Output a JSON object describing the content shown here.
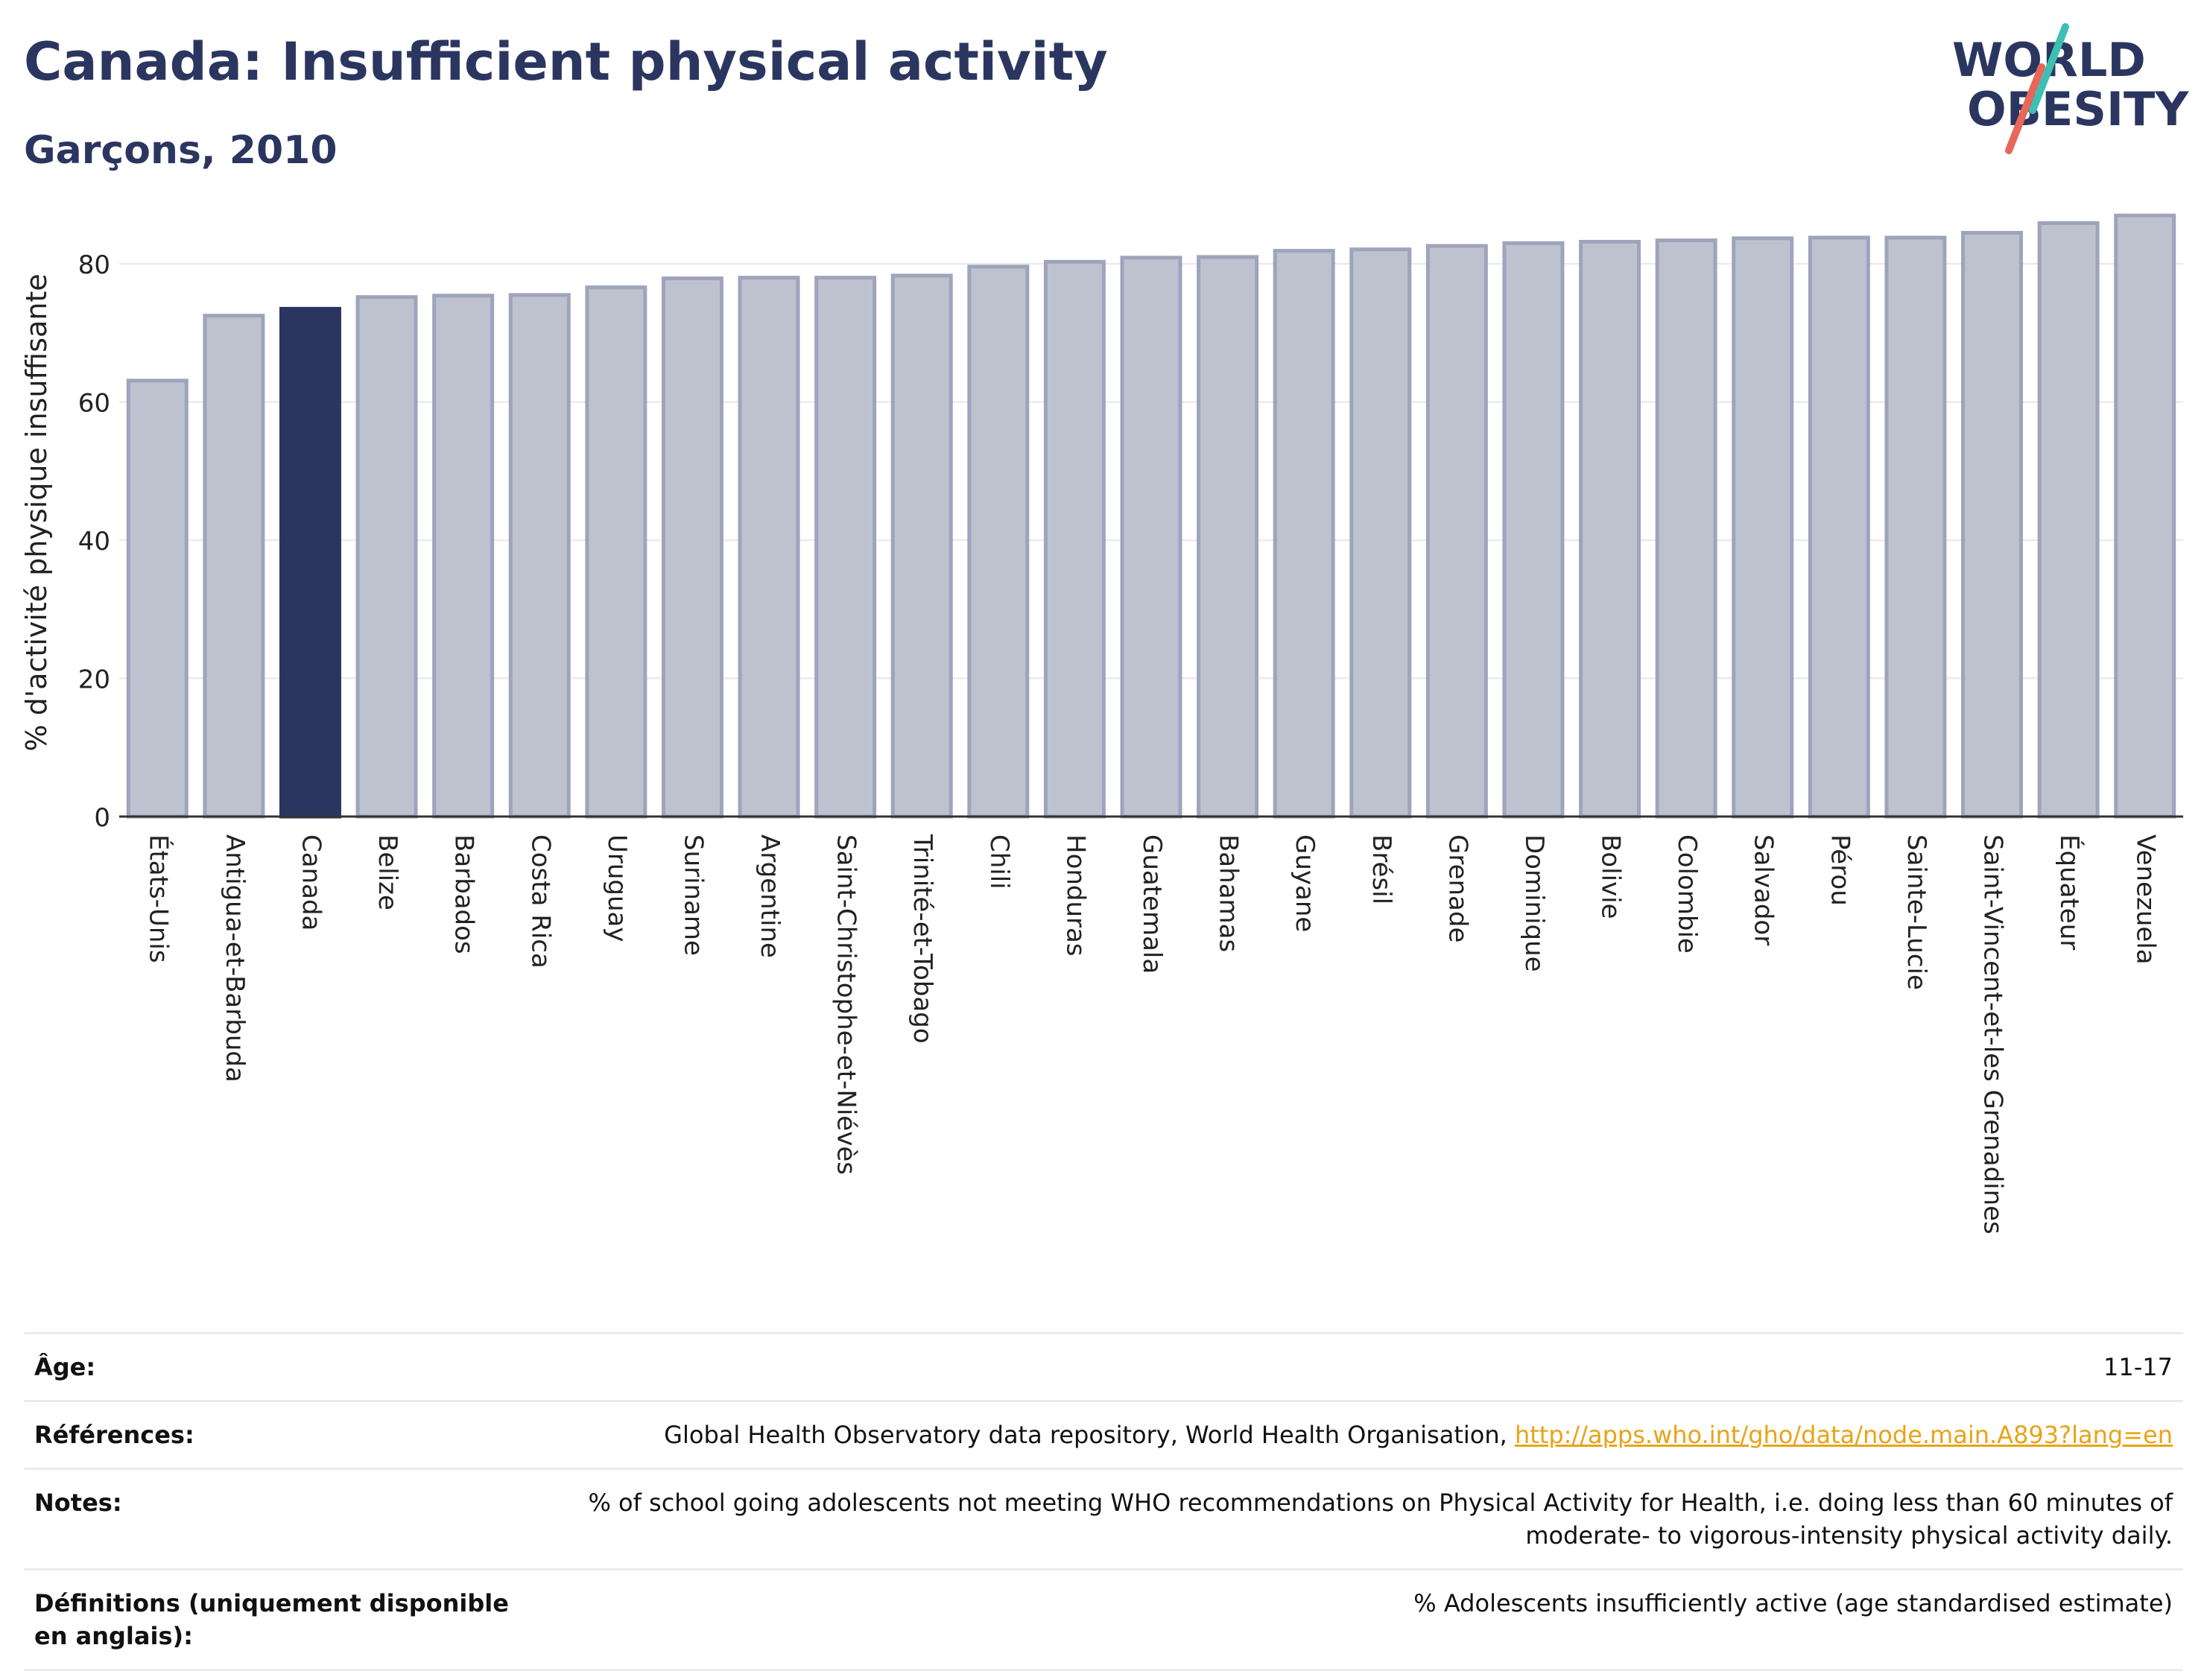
{
  "header": {
    "title": "Canada: Insufficient physical activity",
    "subtitle": "Garçons, 2010"
  },
  "logo": {
    "line1": "WORLD",
    "line2": "OBESITY"
  },
  "colors": {
    "highlight_bar": "#2b3660",
    "other_bar": "#bec2cf",
    "other_bar_border": "#9ea4bb",
    "title": "#2b3660",
    "link": "#e8a317",
    "logo_teal": "#3dbfb3",
    "logo_red": "#e8675a"
  },
  "chart_data": {
    "type": "bar",
    "ylabel": "% d'activité physique insuffisante",
    "ylim": [
      0,
      88
    ],
    "yticks": [
      0,
      20,
      40,
      60,
      80
    ],
    "grid": true,
    "highlight": "Canada",
    "categories": [
      "États-Unis",
      "Antigua-et-Barbuda",
      "Canada",
      "Belize",
      "Barbados",
      "Costa Rica",
      "Uruguay",
      "Suriname",
      "Argentine",
      "Saint-Christophe-et-Niévès",
      "Trinité-et-Tobago",
      "Chili",
      "Honduras",
      "Guatemala",
      "Bahamas",
      "Guyane",
      "Brésil",
      "Grenade",
      "Dominique",
      "Bolivie",
      "Colombie",
      "Salvador",
      "Pérou",
      "Sainte-Lucie",
      "Saint-Vincent-et-les Grenadines",
      "Équateur",
      "Venezuela"
    ],
    "values": [
      63.1,
      72.5,
      73.5,
      75.2,
      75.4,
      75.5,
      76.6,
      77.9,
      78.0,
      78.0,
      78.3,
      79.6,
      80.3,
      80.9,
      81.0,
      81.9,
      82.1,
      82.6,
      83.0,
      83.2,
      83.4,
      83.7,
      83.8,
      83.8,
      84.5,
      85.9,
      87.0
    ]
  },
  "meta": {
    "age_label": "Âge:",
    "age_value": "11-17",
    "references_label": "Références:",
    "references_text": "Global Health Observatory data repository, World Health Organisation,",
    "references_link": "http://apps.who.int/gho/data/node.main.A893?lang=en",
    "notes_label": "Notes:",
    "notes_line1": "% of school going adolescents not meeting WHO recommendations on Physical Activity for Health, i.e. doing less than 60 minutes of",
    "notes_line2": "moderate- to vigorous-intensity physical activity daily.",
    "definitions_label": "Définitions (uniquement disponible en anglais):",
    "definitions_value": "% Adolescents insufficiently active (age standardised estimate)"
  }
}
